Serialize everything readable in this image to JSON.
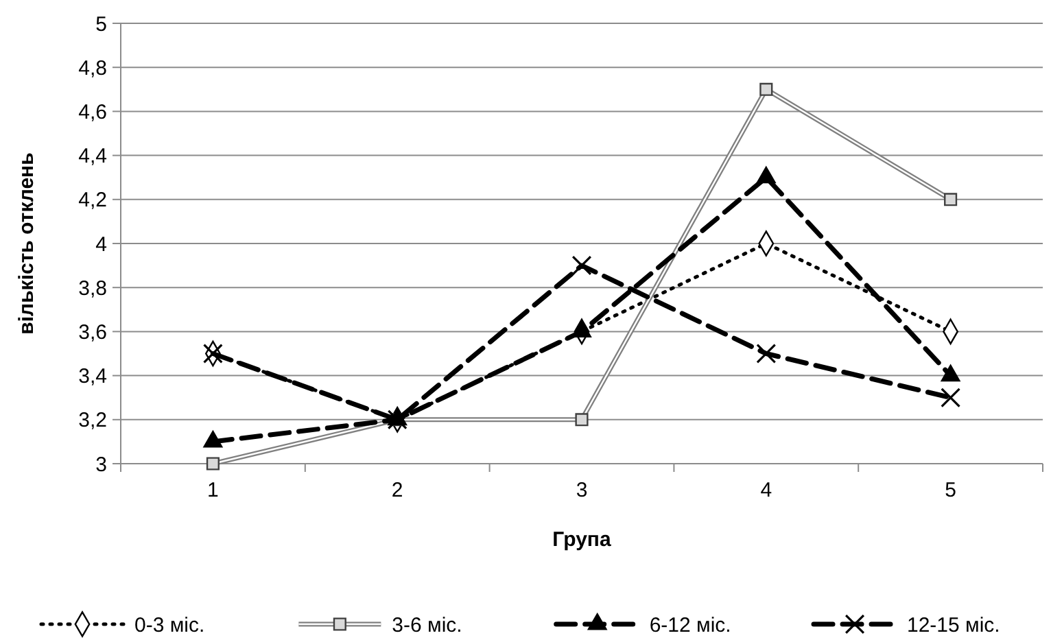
{
  "chart_data": {
    "type": "line",
    "xlabel": "Група",
    "ylabel": "вількість отклень",
    "categories": [
      "1",
      "2",
      "3",
      "4",
      "5"
    ],
    "series": [
      {
        "name": "0-3 міс.",
        "color": "#000000",
        "marker": "diamond",
        "line_style": "dotted",
        "values": [
          3.5,
          3.2,
          3.6,
          4.0,
          3.6
        ]
      },
      {
        "name": "3-6 міс.",
        "color": "#808080",
        "marker": "square",
        "line_style": "solid",
        "values": [
          3.0,
          3.2,
          3.2,
          4.7,
          4.2
        ]
      },
      {
        "name": "6-12 міс.",
        "color": "#000000",
        "marker": "triangle",
        "line_style": "dashed",
        "values": [
          3.1,
          3.2,
          3.6,
          4.3,
          3.4
        ]
      },
      {
        "name": "12-15 міс.",
        "color": "#000000",
        "marker": "cross",
        "line_style": "dashed",
        "values": [
          3.5,
          3.2,
          3.9,
          3.5,
          3.3
        ]
      }
    ],
    "ylim": [
      3,
      5
    ],
    "yticks": [
      3,
      {
        "value": 3.2,
        "label": "3,2"
      },
      {
        "value": 3.4,
        "label": "3,4"
      },
      {
        "value": 3.6,
        "label": "3,6"
      },
      {
        "value": 3.8,
        "label": "3,8"
      },
      4,
      {
        "value": 4.2,
        "label": "4,2"
      },
      {
        "value": 4.4,
        "label": "4,4"
      },
      {
        "value": 4.6,
        "label": "4,6"
      },
      {
        "value": 4.8,
        "label": "4,8"
      },
      5
    ],
    "grid": "y",
    "legend": "bottom"
  }
}
